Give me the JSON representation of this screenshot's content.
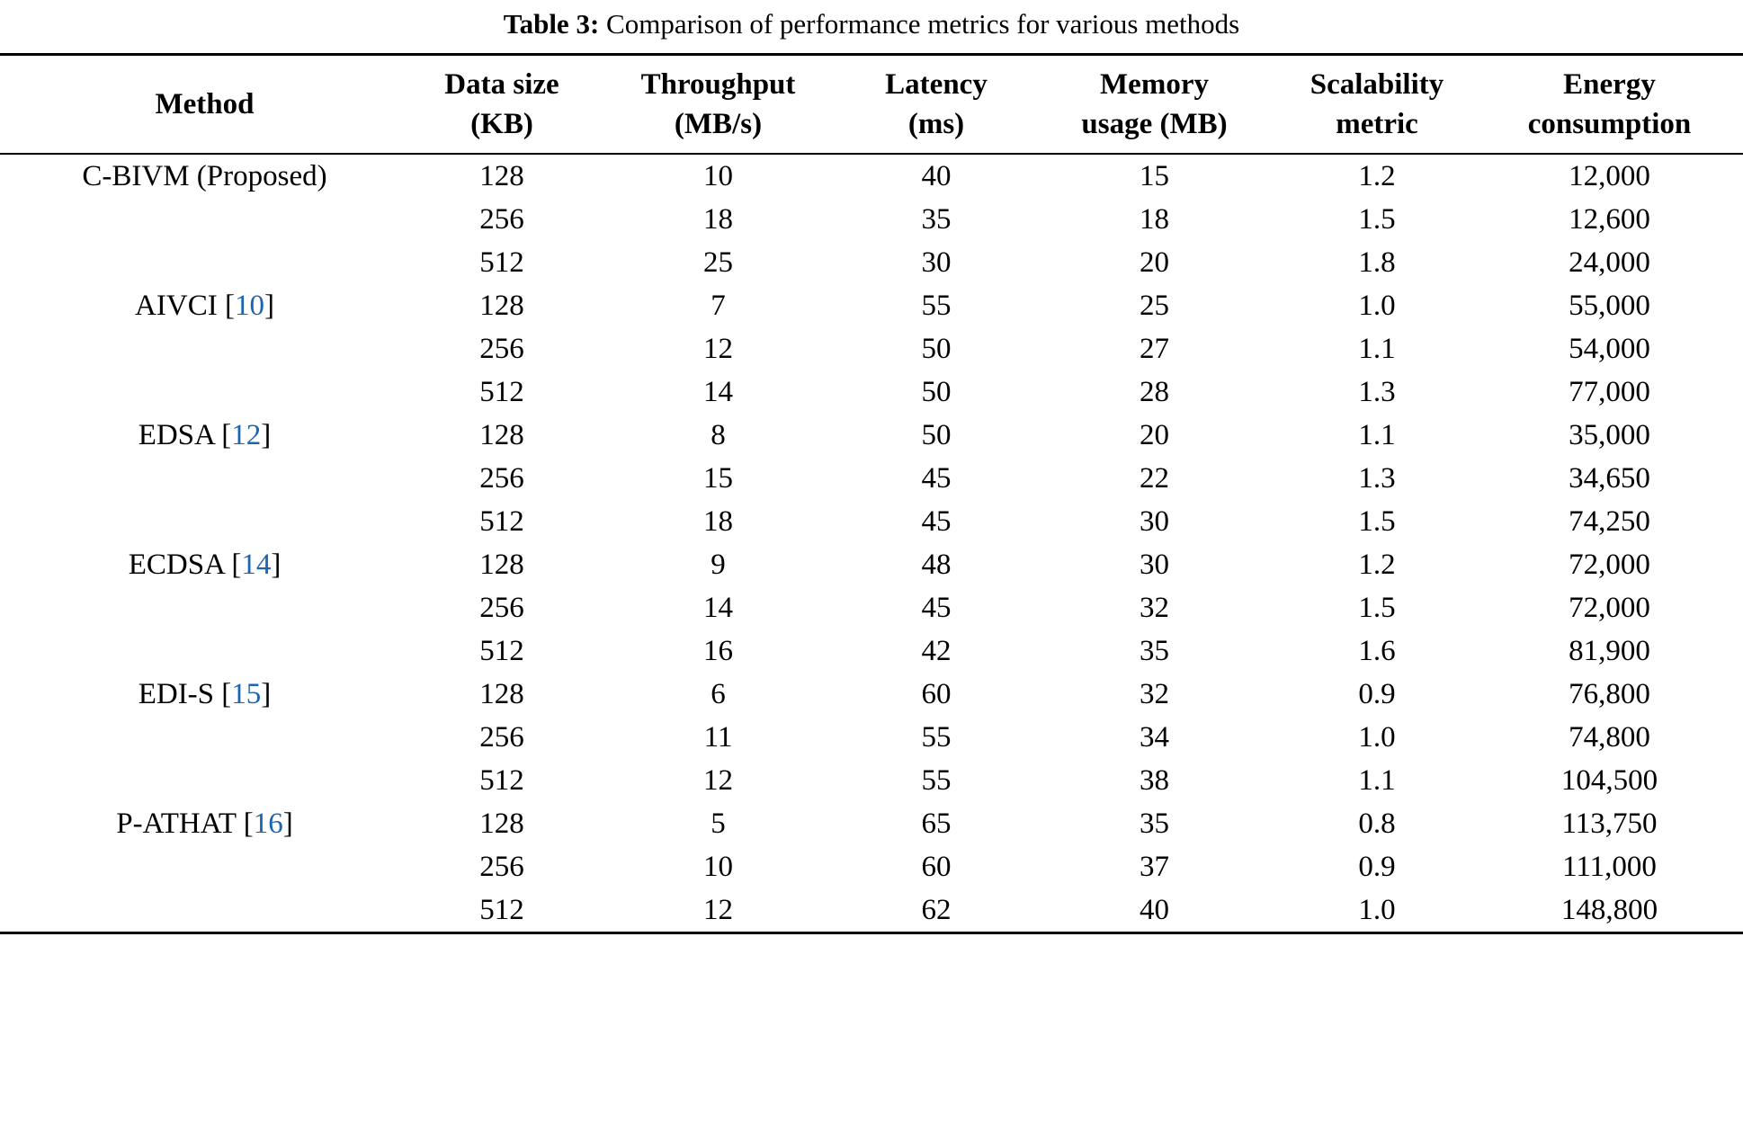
{
  "caption": {
    "label": "Table 3:",
    "text": "Comparison of performance metrics for various methods"
  },
  "colors": {
    "citation": "#1a66b3",
    "text": "#000000",
    "rule": "#000000"
  },
  "table": {
    "headers": [
      {
        "line1": "Method",
        "line2": ""
      },
      {
        "line1": "Data size",
        "line2": "(KB)"
      },
      {
        "line1": "Throughput",
        "line2": "(MB/s)"
      },
      {
        "line1": "Latency",
        "line2": "(ms)"
      },
      {
        "line1": "Memory",
        "line2": "usage (MB)"
      },
      {
        "line1": "Scalability",
        "line2": "metric"
      },
      {
        "line1": "Energy",
        "line2": "consumption"
      }
    ],
    "rows": [
      {
        "method": "C-BIVM (Proposed)",
        "cite": "",
        "cells": [
          "128",
          "10",
          "40",
          "15",
          "1.2",
          "12,000"
        ]
      },
      {
        "method": "",
        "cite": "",
        "cells": [
          "256",
          "18",
          "35",
          "18",
          "1.5",
          "12,600"
        ]
      },
      {
        "method": "",
        "cite": "",
        "cells": [
          "512",
          "25",
          "30",
          "20",
          "1.8",
          "24,000"
        ]
      },
      {
        "method": "AIVCI",
        "cite": "10",
        "cells": [
          "128",
          "7",
          "55",
          "25",
          "1.0",
          "55,000"
        ]
      },
      {
        "method": "",
        "cite": "",
        "cells": [
          "256",
          "12",
          "50",
          "27",
          "1.1",
          "54,000"
        ]
      },
      {
        "method": "",
        "cite": "",
        "cells": [
          "512",
          "14",
          "50",
          "28",
          "1.3",
          "77,000"
        ]
      },
      {
        "method": "EDSA",
        "cite": "12",
        "cells": [
          "128",
          "8",
          "50",
          "20",
          "1.1",
          "35,000"
        ]
      },
      {
        "method": "",
        "cite": "",
        "cells": [
          "256",
          "15",
          "45",
          "22",
          "1.3",
          "34,650"
        ]
      },
      {
        "method": "",
        "cite": "",
        "cells": [
          "512",
          "18",
          "45",
          "30",
          "1.5",
          "74,250"
        ]
      },
      {
        "method": "ECDSA",
        "cite": "14",
        "cells": [
          "128",
          "9",
          "48",
          "30",
          "1.2",
          "72,000"
        ]
      },
      {
        "method": "",
        "cite": "",
        "cells": [
          "256",
          "14",
          "45",
          "32",
          "1.5",
          "72,000"
        ]
      },
      {
        "method": "",
        "cite": "",
        "cells": [
          "512",
          "16",
          "42",
          "35",
          "1.6",
          "81,900"
        ]
      },
      {
        "method": "EDI-S",
        "cite": "15",
        "cells": [
          "128",
          "6",
          "60",
          "32",
          "0.9",
          "76,800"
        ]
      },
      {
        "method": "",
        "cite": "",
        "cells": [
          "256",
          "11",
          "55",
          "34",
          "1.0",
          "74,800"
        ]
      },
      {
        "method": "",
        "cite": "",
        "cells": [
          "512",
          "12",
          "55",
          "38",
          "1.1",
          "104,500"
        ]
      },
      {
        "method": "P-ATHAT",
        "cite": "16",
        "cells": [
          "128",
          "5",
          "65",
          "35",
          "0.8",
          "113,750"
        ]
      },
      {
        "method": "",
        "cite": "",
        "cells": [
          "256",
          "10",
          "60",
          "37",
          "0.9",
          "111,000"
        ]
      },
      {
        "method": "",
        "cite": "",
        "cells": [
          "512",
          "12",
          "62",
          "40",
          "1.0",
          "148,800"
        ]
      }
    ]
  }
}
